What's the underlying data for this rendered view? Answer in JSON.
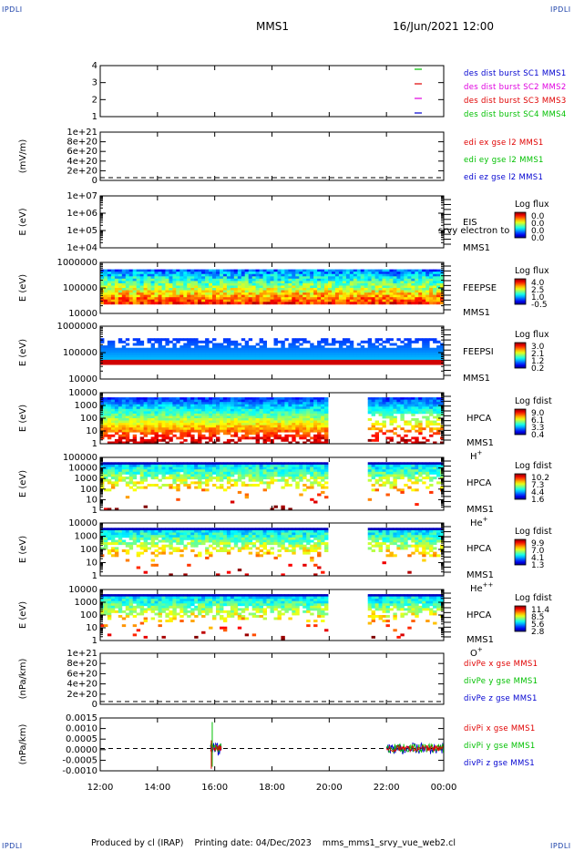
{
  "header": {
    "corner_label": "IPDLI",
    "spacecraft": "MMS1",
    "datetime": "16/Jun/2021 12:00"
  },
  "footer": {
    "produced_by": "Produced by cl (IRAP)",
    "printing_date": "Printing date: 04/Dec/2023",
    "filename": "mms_mms1_srvy_vue_web2.cl"
  },
  "colors": {
    "blue": "#0000d0",
    "magenta": "#e000e0",
    "red": "#e00000",
    "green": "#00c000"
  },
  "chart_data": [
    {
      "type": "line",
      "id": "des",
      "ylabel": "",
      "yticks": [
        "1",
        "2",
        "3",
        "4"
      ],
      "legend": [
        {
          "text": "des dist burst SC1 MMS1",
          "color": "#0000d0"
        },
        {
          "text": "des dist burst SC2 MMS2",
          "color": "#e000e0"
        },
        {
          "text": "des dist burst SC3 MMS3",
          "color": "#e00000"
        },
        {
          "text": "des dist burst SC4 MMS4",
          "color": "#00c000"
        }
      ]
    },
    {
      "type": "line",
      "id": "edi",
      "ylabel": "(mV/m)",
      "yticks": [
        "0",
        "2e+20",
        "4e+20",
        "6e+20",
        "8e+20",
        "1e+21"
      ],
      "legend": [
        {
          "text": "edi ex gse l2 MMS1",
          "color": "#e00000"
        },
        {
          "text": "edi ey gse l2 MMS1",
          "color": "#00c000"
        },
        {
          "text": "edi ez gse l2 MMS1",
          "color": "#0000d0"
        }
      ]
    },
    {
      "type": "heatmap",
      "id": "eis",
      "ylabel": "E (eV)",
      "yticks": [
        "1e+04",
        "1e+05",
        "1e+06",
        "1e+07"
      ],
      "side": [
        "EIS",
        "MMS1"
      ],
      "overlay_text": "srvy electron to",
      "colorbar": {
        "title": "Log flux",
        "values": [
          "0.0",
          "0.0",
          "0.0",
          "0.0"
        ]
      },
      "filled": false
    },
    {
      "type": "heatmap",
      "id": "feeps_e",
      "ylabel": "E (eV)",
      "yticks": [
        "10000",
        "100000",
        "1000000"
      ],
      "side": [
        "FEEPSE",
        "MMS1"
      ],
      "colorbar": {
        "title": "Log flux",
        "values": [
          "4.0",
          "2.5",
          "1.0",
          "-0.5"
        ]
      },
      "filled": true
    },
    {
      "type": "heatmap",
      "id": "feeps_i",
      "ylabel": "E (eV)",
      "yticks": [
        "10000",
        "100000",
        "1000000"
      ],
      "side": [
        "FEEPSI",
        "MMS1"
      ],
      "colorbar": {
        "title": "Log flux",
        "values": [
          "3.0",
          "2.1",
          "1.2",
          "0.2"
        ]
      },
      "filled": true
    },
    {
      "type": "heatmap",
      "id": "hpca_h",
      "ylabel": "E (eV)",
      "yticks": [
        "1",
        "10",
        "100",
        "1000",
        "10000"
      ],
      "side": [
        "HPCA",
        "MMS1"
      ],
      "species": "H",
      "charge": "+",
      "colorbar": {
        "title": "Log fdist",
        "values": [
          "9.0",
          "6.1",
          "3.3",
          "0.4"
        ]
      },
      "filled": true,
      "gap": [
        19.9,
        21.3
      ]
    },
    {
      "type": "heatmap",
      "id": "hpca_he",
      "ylabel": "E (eV)",
      "yticks": [
        "1",
        "10",
        "100",
        "1000",
        "10000",
        "100000"
      ],
      "side": [
        "HPCA",
        "MMS1"
      ],
      "species": "He",
      "charge": "+",
      "colorbar": {
        "title": "Log fdist",
        "values": [
          "10.2",
          "7.3",
          "4.4",
          "1.6"
        ]
      },
      "filled": true,
      "gap": [
        19.9,
        21.3
      ]
    },
    {
      "type": "heatmap",
      "id": "hpca_hepp",
      "ylabel": "E (eV)",
      "yticks": [
        "1",
        "10",
        "100",
        "1000",
        "10000"
      ],
      "side": [
        "HPCA",
        "MMS1"
      ],
      "species": "He",
      "charge": "++",
      "colorbar": {
        "title": "Log fdist",
        "values": [
          "9.9",
          "7.0",
          "4.1",
          "1.3"
        ]
      },
      "filled": true,
      "gap": [
        19.9,
        21.3
      ]
    },
    {
      "type": "heatmap",
      "id": "hpca_o",
      "ylabel": "E (eV)",
      "yticks": [
        "1",
        "10",
        "100",
        "1000",
        "10000"
      ],
      "side": [
        "HPCA",
        "MMS1"
      ],
      "species": "O",
      "charge": "+",
      "colorbar": {
        "title": "Log fdist",
        "values": [
          "11.4",
          "8.5",
          "5.6",
          "2.8"
        ]
      },
      "filled": true,
      "gap": [
        19.9,
        21.3
      ]
    },
    {
      "type": "line",
      "id": "divpe",
      "ylabel": "(nPa/km)",
      "yticks": [
        "0",
        "2e+20",
        "4e+20",
        "6e+20",
        "8e+20",
        "1e+21"
      ],
      "legend": [
        {
          "text": "divPe x gse MMS1",
          "color": "#e00000"
        },
        {
          "text": "divPe y gse MMS1",
          "color": "#00c000"
        },
        {
          "text": "divPe z gse MMS1",
          "color": "#0000d0"
        }
      ]
    },
    {
      "type": "line",
      "id": "divpi",
      "ylabel": "(nPa/km)",
      "yticks": [
        "-0.0010",
        "-0.0005",
        "0.0000",
        "0.0005",
        "0.0010",
        "0.0015"
      ],
      "ylim": [
        -0.0011,
        0.0015
      ],
      "legend": [
        {
          "text": "divPi x gse MMS1",
          "color": "#e00000"
        },
        {
          "text": "divPi y gse MMS1",
          "color": "#00c000"
        },
        {
          "text": "divPi z gse MMS1",
          "color": "#0000d0"
        }
      ],
      "bursts": [
        [
          15.85,
          16.25
        ],
        [
          22.0,
          24.0
        ]
      ]
    }
  ],
  "xaxis": {
    "ticks": [
      "12:00",
      "14:00",
      "16:00",
      "18:00",
      "20:00",
      "22:00",
      "00:00"
    ],
    "range_hours": [
      12,
      24
    ]
  }
}
